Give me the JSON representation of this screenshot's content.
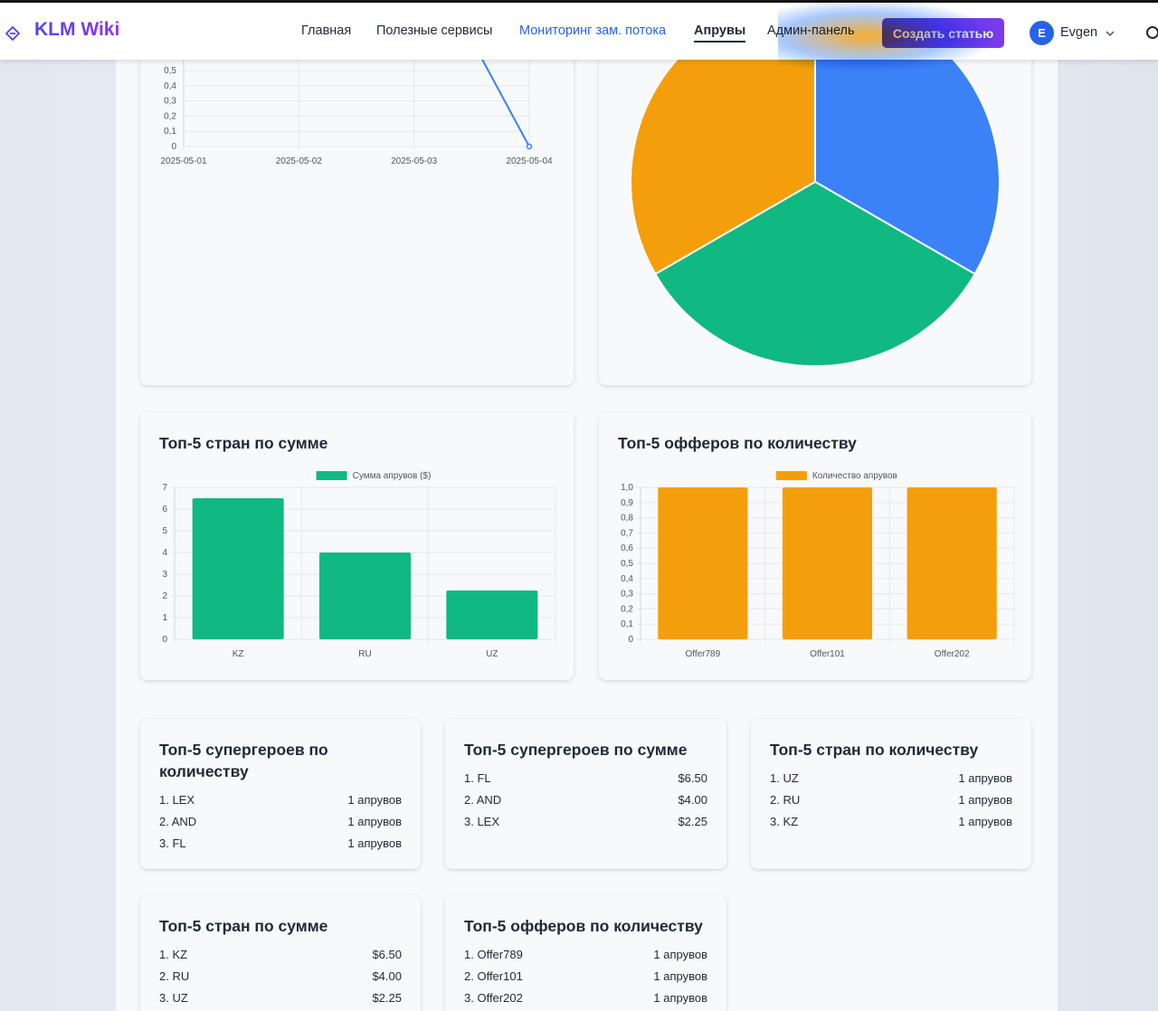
{
  "header": {
    "brand": "KLM Wiki",
    "nav": [
      {
        "label": "Главная"
      },
      {
        "label": "Полезные сервисы"
      },
      {
        "label": "Мониторинг зам. потока"
      },
      {
        "label": "Апрувы"
      },
      {
        "label": "Админ-панель"
      }
    ],
    "create_button": "Создать статью",
    "user_initial": "E",
    "user_name": "Evgen"
  },
  "charts": {
    "line": {
      "type": "line",
      "categories": [
        "2025-05-01",
        "2025-05-02",
        "2025-05-03",
        "2025-05-04"
      ],
      "y_ticks": [
        "0,5",
        "0,4",
        "0,3",
        "0,2",
        "0,1",
        "0"
      ],
      "ylim": [
        0,
        0.5
      ],
      "color": "#3b82f6"
    },
    "pie": {
      "type": "pie",
      "values": [
        1,
        1,
        1
      ],
      "colors": [
        "#3b82f6",
        "#10b981",
        "#f59e0b"
      ]
    },
    "countries_sum": {
      "title": "Топ-5 стран по сумме",
      "legend": "Сумма апрувов ($)",
      "color": "#10b981",
      "chart_data": {
        "type": "bar",
        "categories": [
          "KZ",
          "RU",
          "UZ"
        ],
        "values": [
          6.5,
          4.0,
          2.25
        ],
        "ylim": [
          0,
          7
        ],
        "y_ticks": [
          "7",
          "6",
          "5",
          "4",
          "3",
          "2",
          "1",
          "0"
        ]
      }
    },
    "offers_count": {
      "title": "Топ-5 офферов по количеству",
      "legend": "Количество апрувов",
      "color": "#f59e0b",
      "chart_data": {
        "type": "bar",
        "categories": [
          "Offer789",
          "Offer101",
          "Offer202"
        ],
        "values": [
          1,
          1,
          1
        ],
        "ylim": [
          0,
          1
        ],
        "y_ticks": [
          "1,0",
          "0,9",
          "0,8",
          "0,7",
          "0,6",
          "0,5",
          "0,4",
          "0,3",
          "0,2",
          "0,1",
          "0"
        ]
      }
    }
  },
  "lists": {
    "heroes_count": {
      "title": "Топ-5 супергероев по количеству",
      "items": [
        {
          "name": "1. LEX",
          "value": "1 апрувов"
        },
        {
          "name": "2. AND",
          "value": "1 апрувов"
        },
        {
          "name": "3. FL",
          "value": "1 апрувов"
        }
      ]
    },
    "heroes_sum": {
      "title": "Топ-5 супергероев по сумме",
      "items": [
        {
          "name": "1. FL",
          "value": "$6.50"
        },
        {
          "name": "2. AND",
          "value": "$4.00"
        },
        {
          "name": "3. LEX",
          "value": "$2.25"
        }
      ]
    },
    "countries_count": {
      "title": "Топ-5 стран по количеству",
      "items": [
        {
          "name": "1. UZ",
          "value": "1 апрувов"
        },
        {
          "name": "2. RU",
          "value": "1 апрувов"
        },
        {
          "name": "3. KZ",
          "value": "1 апрувов"
        }
      ]
    },
    "countries_sum": {
      "title": "Топ-5 стран по сумме",
      "items": [
        {
          "name": "1. KZ",
          "value": "$6.50"
        },
        {
          "name": "2. RU",
          "value": "$4.00"
        },
        {
          "name": "3. UZ",
          "value": "$2.25"
        }
      ]
    },
    "offers_count": {
      "title": "Топ-5 офферов по количеству",
      "items": [
        {
          "name": "1. Offer789",
          "value": "1 апрувов"
        },
        {
          "name": "2. Offer101",
          "value": "1 апрувов"
        },
        {
          "name": "3. Offer202",
          "value": "1 апрувов"
        }
      ]
    }
  }
}
